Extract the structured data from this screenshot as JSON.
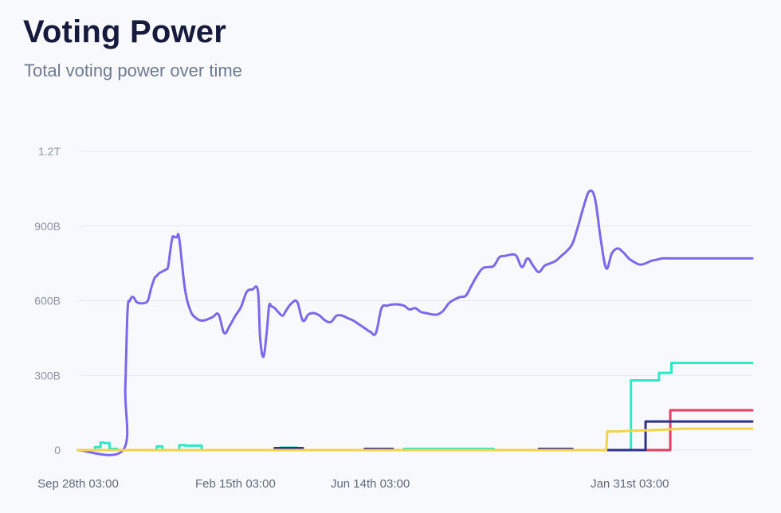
{
  "header": {
    "title": "Voting Power",
    "subtitle": "Total voting power over time"
  },
  "chart_data": {
    "type": "line",
    "title": "Voting Power",
    "subtitle": "Total voting power over time",
    "ylim": [
      0,
      1200000000000
    ],
    "grid": true,
    "legend": "none",
    "y_ticks": [
      {
        "value": 0,
        "label": "0"
      },
      {
        "value": 300000000000,
        "label": "300B"
      },
      {
        "value": 600000000000,
        "label": "600B"
      },
      {
        "value": 900000000000,
        "label": "900B"
      },
      {
        "value": 1200000000000,
        "label": "1.2T"
      }
    ],
    "x_ticks": [
      {
        "value": 0,
        "label": "Sep 28th 03:00"
      },
      {
        "value": 140,
        "label": "Feb 15th 03:00"
      },
      {
        "value": 260,
        "label": "Jun 14th 03:00"
      },
      {
        "value": 491,
        "label": "Jan 31st 03:00"
      }
    ],
    "xlim": [
      0,
      600
    ],
    "series": [
      {
        "color": "#7b68ee",
        "step": false,
        "x": [
          0,
          40,
          42,
          44,
          46,
          48,
          50,
          52,
          55,
          58,
          62,
          65,
          68,
          70,
          72,
          74,
          76,
          78,
          80,
          82,
          84,
          86,
          88,
          90,
          95,
          100,
          105,
          110,
          115,
          120,
          125,
          130,
          135,
          140,
          145,
          150,
          155,
          160,
          162,
          165,
          168,
          170,
          172,
          175,
          178,
          182,
          185,
          190,
          195,
          200,
          205,
          210,
          215,
          220,
          225,
          230,
          235,
          240,
          245,
          250,
          255,
          260,
          265,
          270,
          275,
          280,
          285,
          290,
          295,
          300,
          305,
          310,
          315,
          320,
          325,
          330,
          335,
          340,
          345,
          350,
          355,
          360,
          365,
          370,
          375,
          380,
          385,
          390,
          395,
          400,
          405,
          410,
          415,
          420,
          425,
          430,
          435,
          440,
          445,
          450,
          455,
          460,
          465,
          470,
          475,
          480,
          485,
          490,
          495,
          500,
          505,
          510,
          515,
          520,
          525,
          530,
          535,
          540,
          545,
          550,
          555,
          560,
          565,
          570,
          575,
          580,
          585,
          590,
          595,
          600
        ],
        "y": [
          0,
          0,
          250,
          560,
          600,
          615,
          610,
          595,
          590,
          590,
          600,
          650,
          690,
          700,
          710,
          715,
          720,
          725,
          735,
          800,
          855,
          855,
          855,
          850,
          650,
          560,
          530,
          520,
          525,
          535,
          545,
          470,
          500,
          540,
          575,
          635,
          645,
          640,
          450,
          375,
          480,
          580,
          578,
          570,
          555,
          540,
          560,
          590,
          595,
          520,
          545,
          550,
          540,
          520,
          515,
          540,
          540,
          530,
          520,
          505,
          490,
          475,
          470,
          570,
          580,
          585,
          585,
          580,
          565,
          570,
          555,
          550,
          545,
          545,
          560,
          590,
          605,
          615,
          620,
          660,
          700,
          730,
          735,
          740,
          775,
          780,
          785,
          780,
          735,
          770,
          740,
          715,
          740,
          750,
          760,
          780,
          800,
          830,
          900,
          980,
          1040,
          1010,
          850,
          730,
          790,
          810,
          795,
          770,
          755,
          745,
          750,
          760,
          765,
          770,
          770,
          770,
          770,
          770,
          770,
          770,
          770,
          770,
          770,
          770,
          770,
          770,
          770,
          770,
          770,
          770
        ]
      },
      {
        "color": "#2ee8c8",
        "step": true,
        "x": [
          0,
          10,
          15,
          20,
          23,
          28,
          35,
          40,
          60,
          70,
          75,
          85,
          90,
          95,
          110,
          130,
          145,
          175,
          180,
          195,
          210,
          290,
          370,
          470,
          490,
          492,
          512,
          517,
          523,
          528,
          537,
          600
        ],
        "y": [
          0,
          0,
          12,
          30,
          28,
          5,
          0,
          0,
          0,
          15,
          0,
          0,
          20,
          18,
          0,
          0,
          0,
          0,
          10,
          0,
          0,
          5,
          0,
          0,
          0,
          280,
          280,
          310,
          310,
          350,
          350,
          350
        ]
      },
      {
        "color": "#e63e62",
        "step": true,
        "x": [
          0,
          503,
          505,
          527,
          540,
          600
        ],
        "y": [
          0,
          0,
          0,
          160,
          160,
          160
        ]
      },
      {
        "color": "#2f2f8f",
        "step": true,
        "x": [
          0,
          170,
          175,
          190,
          200,
          245,
          255,
          280,
          300,
          360,
          400,
          410,
          440,
          490,
          491,
          495,
          505,
          540,
          600
        ],
        "y": [
          0,
          0,
          8,
          8,
          0,
          0,
          5,
          0,
          0,
          0,
          0,
          5,
          0,
          0,
          0,
          0,
          115,
          115,
          115
        ]
      },
      {
        "color": "#f4d34a",
        "step": false,
        "x": [
          0,
          430,
          460,
          470,
          471,
          480,
          495,
          510,
          530,
          540,
          600
        ],
        "y": [
          0,
          0,
          0,
          0,
          75,
          75,
          78,
          80,
          84,
          86,
          86
        ]
      }
    ]
  }
}
